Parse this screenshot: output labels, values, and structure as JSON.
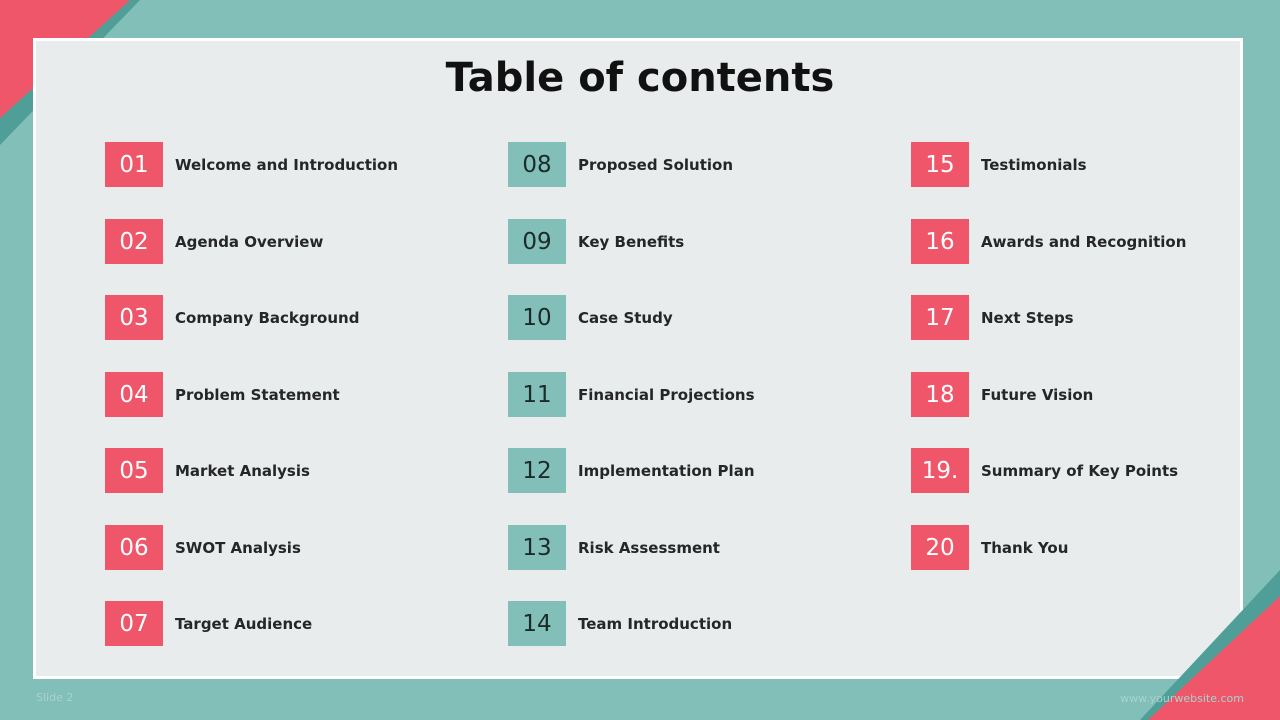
{
  "slide": {
    "title": "Table of contents",
    "slide_label": "Slide 2",
    "website": "www.yourwebsite.com"
  },
  "colors": {
    "background_teal": "#82bfb8",
    "panel": "#e8ecec",
    "accent_red": "#f0566a",
    "dark_teal": "#4f9f98"
  },
  "items": [
    {
      "num": "01",
      "label": "Welcome and Introduction"
    },
    {
      "num": "02",
      "label": "Agenda Overview"
    },
    {
      "num": "03",
      "label": "Company Background"
    },
    {
      "num": "04",
      "label": "Problem Statement"
    },
    {
      "num": "05",
      "label": "Market Analysis"
    },
    {
      "num": "06",
      "label": "SWOT Analysis"
    },
    {
      "num": "07",
      "label": "Target Audience"
    },
    {
      "num": "08",
      "label": "Proposed Solution"
    },
    {
      "num": "09",
      "label": "Key Benefits"
    },
    {
      "num": "10",
      "label": "Case Study"
    },
    {
      "num": "11",
      "label": "Financial Projections"
    },
    {
      "num": "12",
      "label": "Implementation Plan"
    },
    {
      "num": "13",
      "label": "Risk Assessment"
    },
    {
      "num": "14",
      "label": "Team Introduction"
    },
    {
      "num": "15",
      "label": "Testimonials"
    },
    {
      "num": "16",
      "label": "Awards and Recognition"
    },
    {
      "num": "17",
      "label": "Next Steps"
    },
    {
      "num": "18",
      "label": "Future Vision"
    },
    {
      "num": "19.",
      "label": "Summary of Key Points"
    },
    {
      "num": "20",
      "label": "Thank You"
    }
  ]
}
